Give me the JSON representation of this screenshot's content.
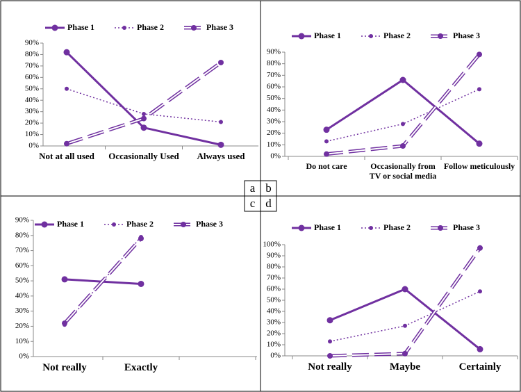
{
  "chart_data": [
    {
      "type": "line",
      "label": "a",
      "categories": [
        "Not at all used",
        "Occasionally Used",
        "Always used"
      ],
      "series": [
        {
          "name": "Phase 1",
          "color": "#7030a0",
          "style": "solid",
          "values": [
            82,
            16,
            1
          ]
        },
        {
          "name": "Phase 2",
          "color": "#7030a0",
          "style": "dotted",
          "values": [
            50,
            28,
            21
          ]
        },
        {
          "name": "Phase 3",
          "color": "#7030a0",
          "style": "double-dashed",
          "values": [
            2,
            24,
            73
          ]
        }
      ],
      "ylim": [
        0,
        90
      ],
      "yticks": [
        {
          "value": 0,
          "label": "0%"
        },
        {
          "value": 10,
          "label": "10%"
        },
        {
          "value": 20,
          "label": "20%"
        },
        {
          "value": 30,
          "label": "30%"
        },
        {
          "value": 40,
          "label": "40%"
        },
        {
          "value": 50,
          "label": "50%"
        },
        {
          "value": 60,
          "label": "60%"
        },
        {
          "value": 70,
          "label": "70%"
        },
        {
          "value": 80,
          "label": "80%"
        },
        {
          "value": 90,
          "label": "90%"
        }
      ]
    },
    {
      "type": "line",
      "label": "b",
      "categories": [
        "Do not care",
        "Occasionally from TV or social media",
        "Follow meticulously"
      ],
      "series": [
        {
          "name": "Phase 1",
          "color": "#7030a0",
          "style": "solid",
          "values": [
            23,
            66,
            11
          ]
        },
        {
          "name": "Phase 2",
          "color": "#7030a0",
          "style": "dotted",
          "values": [
            13,
            28,
            58
          ]
        },
        {
          "name": "Phase 3",
          "color": "#7030a0",
          "style": "double-dashed",
          "values": [
            2,
            9,
            88
          ]
        }
      ],
      "ylim": [
        0,
        90
      ],
      "yticks": [
        {
          "value": 0,
          "label": "0%"
        },
        {
          "value": 10,
          "label": "10%"
        },
        {
          "value": 20,
          "label": "20%"
        },
        {
          "value": 30,
          "label": "30%"
        },
        {
          "value": 40,
          "label": "40%"
        },
        {
          "value": 50,
          "label": "50%"
        },
        {
          "value": 60,
          "label": "60%"
        },
        {
          "value": 70,
          "label": "70%"
        },
        {
          "value": 80,
          "label": "80%"
        },
        {
          "value": 90,
          "label": "90%"
        }
      ]
    },
    {
      "type": "line",
      "label": "c",
      "categories": [
        "Not really",
        "Exactly",
        null
      ],
      "series": [
        {
          "name": "Phase 1",
          "color": "#7030a0",
          "style": "solid",
          "values": [
            51,
            48,
            null
          ]
        },
        {
          "name": "Phase 2",
          "color": "#7030a0",
          "style": "dotted",
          "values": [
            21,
            79,
            null
          ]
        },
        {
          "name": "Phase 3",
          "color": "#7030a0",
          "style": "double-dashed",
          "values": [
            22,
            78,
            null
          ]
        }
      ],
      "ylim": [
        0,
        90
      ],
      "yticks": [
        {
          "value": 0,
          "label": "0%"
        },
        {
          "value": 10,
          "label": "10%"
        },
        {
          "value": 20,
          "label": "20%"
        },
        {
          "value": 30,
          "label": "30%"
        },
        {
          "value": 40,
          "label": "40%"
        },
        {
          "value": 50,
          "label": "50%"
        },
        {
          "value": 60,
          "label": "60%"
        },
        {
          "value": 70,
          "label": "70%"
        },
        {
          "value": 80,
          "label": "80%"
        },
        {
          "value": 90,
          "label": "90%"
        }
      ]
    },
    {
      "type": "line",
      "label": "d",
      "categories": [
        "Not really",
        "Maybe",
        "Certainly"
      ],
      "series": [
        {
          "name": "Phase 1",
          "color": "#7030a0",
          "style": "solid",
          "values": [
            32,
            60,
            6
          ]
        },
        {
          "name": "Phase 2",
          "color": "#7030a0",
          "style": "dotted",
          "values": [
            13,
            27,
            58
          ]
        },
        {
          "name": "Phase 3",
          "color": "#7030a0",
          "style": "double-dashed",
          "values": [
            0,
            2,
            97
          ]
        }
      ],
      "ylim": [
        0,
        100
      ],
      "yticks": [
        {
          "value": 0,
          "label": "0%"
        },
        {
          "value": 10,
          "label": "10%"
        },
        {
          "value": 20,
          "label": "20%"
        },
        {
          "value": 30,
          "label": "30%"
        },
        {
          "value": 40,
          "label": "40%"
        },
        {
          "value": 50,
          "label": "50%"
        },
        {
          "value": 60,
          "label": "60%"
        },
        {
          "value": 70,
          "label": "70%"
        },
        {
          "value": 80,
          "label": "80%"
        },
        {
          "value": 90,
          "label": "90%"
        },
        {
          "value": 100,
          "label": "100%"
        }
      ]
    }
  ]
}
